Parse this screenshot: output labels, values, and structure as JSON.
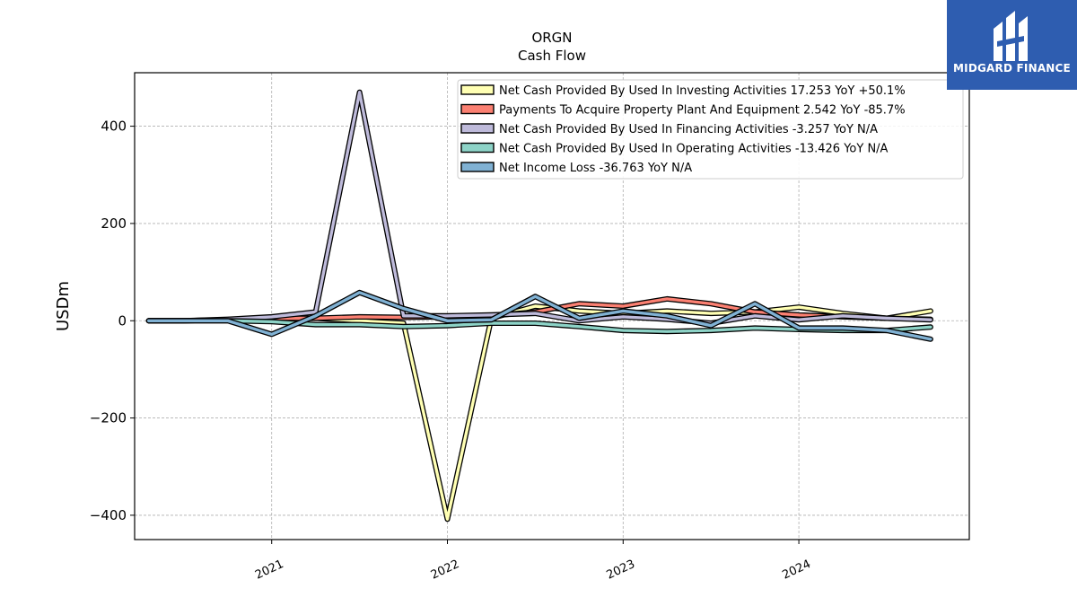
{
  "chart_data": {
    "type": "line",
    "title": "ORGN",
    "subtitle": "Cash Flow",
    "ylabel": "USDm",
    "xlabel": "",
    "ylim": [
      -450,
      510
    ],
    "xlim": [
      2020.22,
      2024.97
    ],
    "x_ticks": [
      2021,
      2022,
      2023,
      2024
    ],
    "x_tick_labels": [
      "2021",
      "2022",
      "2023",
      "2024"
    ],
    "y_ticks": [
      -400,
      -200,
      0,
      200,
      400
    ],
    "y_tick_labels": [
      "−400",
      "−200",
      "0",
      "200",
      "400"
    ],
    "grid": true,
    "legend_position": "top-right",
    "x": [
      2020.3,
      2020.5,
      2020.75,
      2021.0,
      2021.25,
      2021.5,
      2021.75,
      2022.0,
      2022.25,
      2022.5,
      2022.75,
      2023.0,
      2023.25,
      2023.5,
      2023.75,
      2024.0,
      2024.25,
      2024.5,
      2024.75
    ],
    "series": [
      {
        "name": "Net Cash Provided By Used In Investing Activities",
        "legend_label": "Net Cash Provided By Used In Investing Activities  17.253 YoY +50.1%",
        "color": "#ffffb3",
        "values": [
          0,
          0,
          2,
          3,
          5,
          0,
          -5,
          -408,
          5,
          30,
          20,
          15,
          20,
          15,
          18,
          28,
          15,
          5,
          20
        ]
      },
      {
        "name": "Payments To Acquire Property Plant And Equipment",
        "legend_label": "Payments To Acquire Property Plant And Equipment  2.542 YoY -85.7%",
        "color": "#fb8072",
        "values": [
          0,
          0,
          2,
          5,
          5,
          8,
          7,
          8,
          10,
          18,
          35,
          30,
          45,
          35,
          18,
          12,
          8,
          5,
          3
        ]
      },
      {
        "name": "Net Cash Provided By Used In Financing Activities",
        "legend_label": "Net Cash Provided By Used In Financing Activities  -3.257 YoY N/A",
        "color": "#bebada",
        "values": [
          0,
          0,
          3,
          8,
          18,
          470,
          10,
          10,
          12,
          15,
          0,
          8,
          3,
          -5,
          10,
          2,
          10,
          5,
          2
        ]
      },
      {
        "name": "Net Cash Provided By Used In Operating Activities",
        "legend_label": "Net Cash Provided By Used In Operating Activities  -13.426 YoY N/A",
        "color": "#8dd3c7",
        "values": [
          0,
          0,
          0,
          -2,
          -8,
          -8,
          -12,
          -10,
          -5,
          -5,
          -12,
          -20,
          -22,
          -20,
          -15,
          -18,
          -20,
          -20,
          -13
        ]
      },
      {
        "name": "Net Income Loss",
        "legend_label": "Net Income Loss  -36.763 YoY N/A",
        "color": "#80b1d3",
        "values": [
          0,
          0,
          0,
          -28,
          10,
          58,
          25,
          0,
          2,
          50,
          5,
          20,
          10,
          -10,
          35,
          -15,
          -15,
          -20,
          -38
        ]
      }
    ]
  },
  "logo": {
    "text": "MIDGARD FINANCE",
    "background": "#2e5db0",
    "icon": "midgard-mark-icon"
  }
}
